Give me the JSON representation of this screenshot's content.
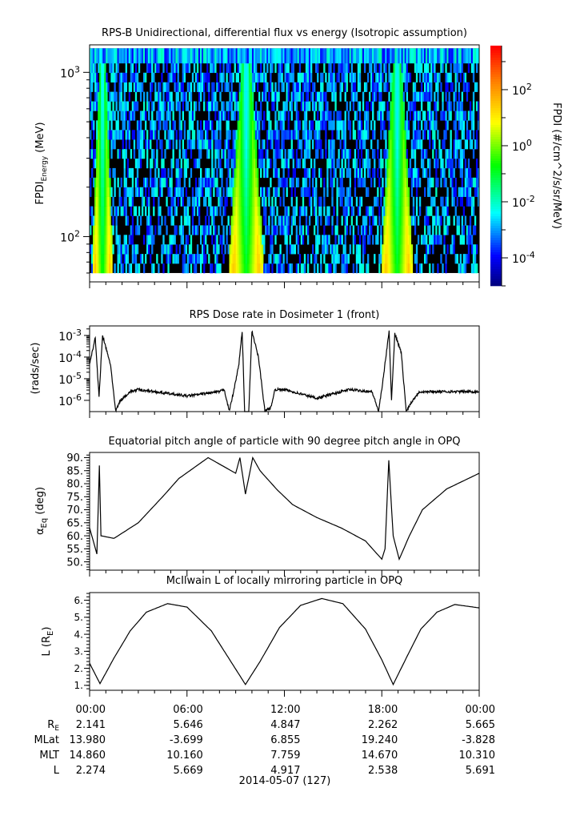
{
  "chart_data": [
    {
      "type": "heatmap",
      "title": "RPS-B  Unidirectional, differential flux vs energy (Isotropic assumption)",
      "ylabel": "FPDI",
      "ylabel_sub": "Energy",
      "ylabel_unit": " (MeV)",
      "yscale": "log",
      "ylim": [
        53,
        1470
      ],
      "ytick_labels": [
        {
          "base": "10",
          "exp": "3",
          "value": 1000
        },
        {
          "base": "10",
          "exp": "2",
          "value": 100
        }
      ],
      "energy_range_mev": [
        60,
        1300
      ],
      "energy_bins": 22,
      "belt_crossings_hours": [
        [
          0.1,
          1.4
        ],
        [
          8.5,
          10.7
        ],
        [
          17.9,
          19.9
        ]
      ],
      "colorbar": {
        "label": "FPDI (#/cm^2/s/sr/MeV)",
        "scale": "log",
        "zlim_log10": [
          -5,
          3.57
        ],
        "tick_labels": [
          {
            "base": "10",
            "exp": "2",
            "value": 2
          },
          {
            "base": "10",
            "exp": "0",
            "value": 0
          },
          {
            "base": "10",
            "exp": "-2",
            "value": -2
          },
          {
            "base": "10",
            "exp": "-4",
            "value": -4
          }
        ]
      }
    },
    {
      "type": "line",
      "title": "RPS  Dose rate in Dosimeter 1 (front)",
      "ylabel": "(rads/sec)",
      "yscale": "log",
      "ylim_log10": [
        -6.52,
        -2.56
      ],
      "ytick_labels": [
        {
          "base": "10",
          "exp": "-3",
          "value": -3
        },
        {
          "base": "10",
          "exp": "-4",
          "value": -4
        },
        {
          "base": "10",
          "exp": "-5",
          "value": -5
        },
        {
          "base": "10",
          "exp": "-6",
          "value": -6
        }
      ],
      "x_hours": [
        0,
        0.35,
        0.5,
        0.58,
        0.8,
        1.3,
        1.6,
        1.9,
        2.5,
        3,
        5,
        6,
        8,
        8.3,
        8.6,
        8.9,
        9.2,
        9.4,
        9.55,
        9.8,
        10.0,
        10.4,
        10.8,
        11.2,
        11.4,
        12,
        14,
        16,
        17.4,
        17.8,
        18.0,
        18.3,
        18.45,
        18.6,
        18.8,
        19.2,
        19.5,
        19.9,
        20.3,
        24
      ],
      "y_log10": [
        -4.3,
        -3.1,
        -4.9,
        -5.8,
        -3.0,
        -4.4,
        -6.5,
        -6.0,
        -5.6,
        -5.5,
        -5.7,
        -5.8,
        -5.6,
        -5.5,
        -6.5,
        -5.5,
        -4.3,
        -2.8,
        -6.6,
        -6.6,
        -2.8,
        -4.0,
        -6.5,
        -6.3,
        -5.5,
        -5.5,
        -5.9,
        -5.5,
        -5.6,
        -6.5,
        -5.5,
        -3.7,
        -2.8,
        -6.0,
        -2.9,
        -3.8,
        -6.5,
        -6.0,
        -5.6,
        -5.6
      ]
    },
    {
      "type": "line",
      "title": "Equatorial pitch angle of particle with 90 degree pitch angle in OPQ",
      "ylabel": "α",
      "ylabel_sub": "Eq",
      "ylabel_unit": " (deg)",
      "ylim": [
        46.8,
        92
      ],
      "ytick_labels": [
        "90.",
        "85.",
        "80.",
        "75.",
        "70.",
        "65.",
        "60.",
        "55.",
        "50."
      ],
      "ytick_values": [
        90,
        85,
        80,
        75,
        70,
        65,
        60,
        55,
        50
      ],
      "x_hours": [
        0,
        0.45,
        0.6,
        0.7,
        1.5,
        3,
        4.5,
        5.5,
        7.3,
        9.0,
        9.26,
        9.6,
        10.05,
        10.5,
        11.5,
        12.5,
        14,
        15.5,
        17,
        18.0,
        18.2,
        18.43,
        18.7,
        19.07,
        19.7,
        20.5,
        22,
        24
      ],
      "y": [
        63,
        53,
        87,
        60,
        59,
        65,
        75,
        82,
        90,
        84,
        90,
        76,
        90,
        85,
        78,
        72,
        67,
        63,
        58,
        51,
        55,
        89,
        60,
        51,
        60,
        70,
        78,
        84
      ]
    },
    {
      "type": "line",
      "title": "McIlwain L of locally mirroring particle in OPQ",
      "ylabel": "L (R",
      "ylabel_sub": "E",
      "ylabel_unit": ")",
      "ylim": [
        0.71,
        6.45
      ],
      "ytick_labels": [
        "6.",
        "5.",
        "4.",
        "3.",
        "2.",
        "1."
      ],
      "ytick_values": [
        6,
        5,
        4,
        3,
        2,
        1
      ],
      "x_hours": [
        0,
        0.64,
        1.5,
        2.5,
        3.5,
        4.8,
        6,
        7.5,
        8.7,
        9.6,
        10.5,
        11.7,
        13,
        14.3,
        15.6,
        17,
        18,
        18.7,
        19.4,
        20.4,
        21.4,
        22.5,
        24
      ],
      "y": [
        2.3,
        1.1,
        2.6,
        4.2,
        5.3,
        5.8,
        5.6,
        4.2,
        2.4,
        1.05,
        2.4,
        4.4,
        5.7,
        6.1,
        5.8,
        4.3,
        2.5,
        1.05,
        2.4,
        4.3,
        5.3,
        5.75,
        5.55
      ]
    }
  ],
  "x_axis": {
    "tick_labels": [
      "00:00",
      "06:00",
      "12:00",
      "18:00",
      "00:00"
    ],
    "tick_hours": [
      0,
      6,
      12,
      18,
      24
    ],
    "date_label": "2014-05-07 (127)",
    "ephemeris": [
      {
        "label": "R",
        "label_sub": "E",
        "values": [
          "2.141",
          "5.646",
          "4.847",
          "2.262",
          "5.665"
        ]
      },
      {
        "label": "MLat",
        "values": [
          "13.980",
          "-3.699",
          "6.855",
          "19.240",
          "-3.828"
        ]
      },
      {
        "label": "MLT",
        "values": [
          "14.860",
          "10.160",
          "7.759",
          "14.670",
          "10.310"
        ]
      },
      {
        "label": "L",
        "values": [
          "2.274",
          "5.669",
          "4.917",
          "2.538",
          "5.691"
        ]
      }
    ]
  }
}
